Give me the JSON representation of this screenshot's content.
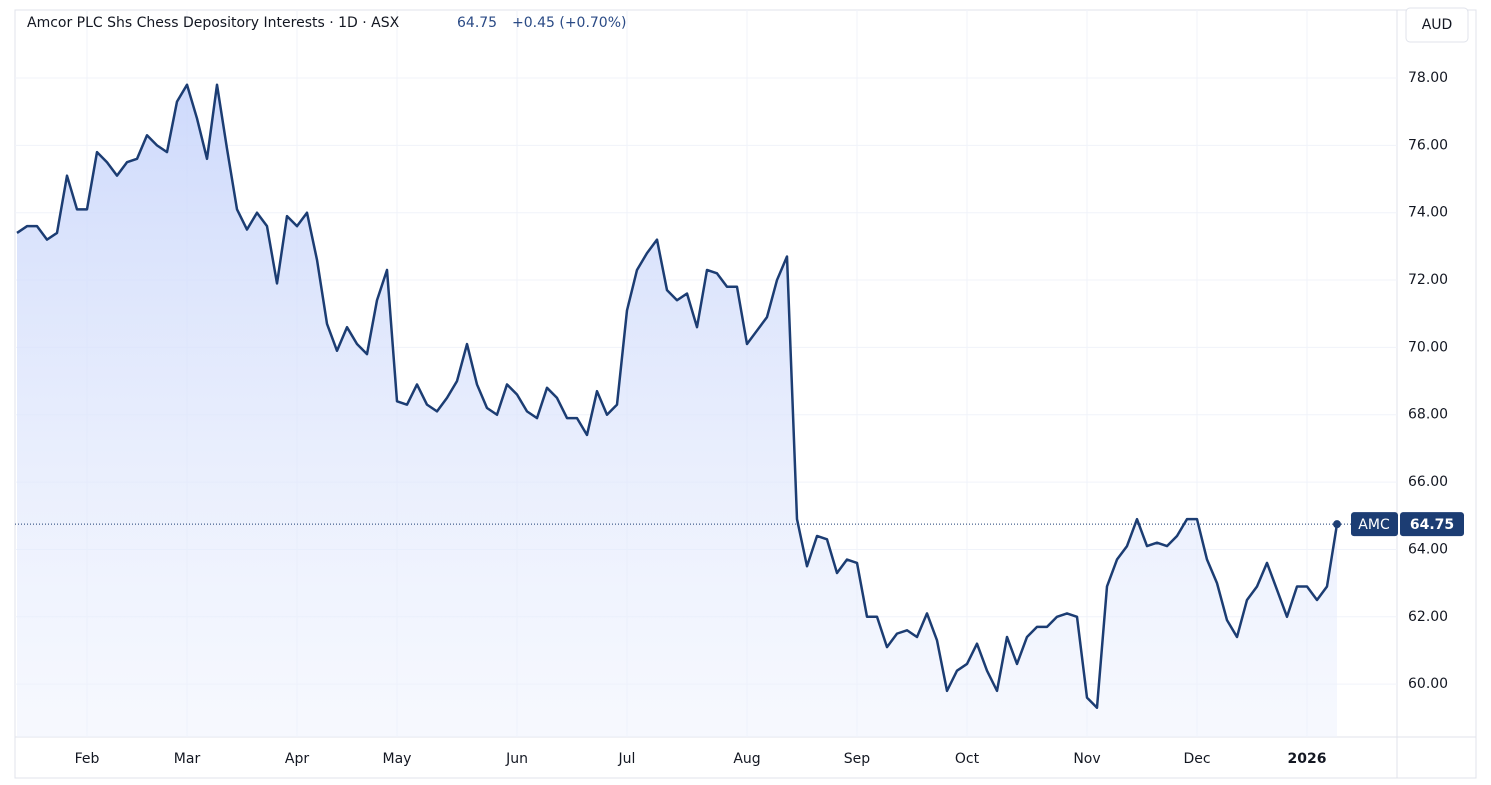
{
  "chart_data": {
    "type": "line",
    "title": "Amcor PLC Shs Chess Depository Interests · 1D · ASX",
    "change_label": "+0.45 (+0.70%)",
    "currency": "AUD",
    "categories": [
      null,
      null,
      null,
      null,
      null,
      null,
      null,
      "Feb",
      null,
      null,
      null,
      null,
      null,
      null,
      null,
      null,
      null,
      "Mar",
      null,
      null,
      null,
      null,
      null,
      null,
      null,
      null,
      null,
      null,
      "Apr",
      null,
      null,
      null,
      null,
      null,
      null,
      null,
      null,
      null,
      "May",
      null,
      null,
      null,
      null,
      null,
      null,
      null,
      null,
      null,
      null,
      null,
      "Jun",
      null,
      null,
      null,
      null,
      null,
      null,
      null,
      null,
      null,
      null,
      "Jul",
      null,
      null,
      null,
      null,
      null,
      null,
      null,
      null,
      null,
      null,
      null,
      "Aug",
      null,
      null,
      null,
      null,
      null,
      null,
      null,
      null,
      null,
      null,
      "Sep",
      null,
      null,
      null,
      null,
      null,
      null,
      null,
      null,
      null,
      null,
      "Oct",
      null,
      null,
      null,
      null,
      null,
      null,
      null,
      null,
      null,
      null,
      null,
      "Nov",
      null,
      null,
      null,
      null,
      null,
      null,
      null,
      null,
      null,
      null,
      "Dec",
      null,
      null,
      null,
      null,
      null,
      null,
      null,
      null,
      null,
      null,
      "2026",
      null,
      null,
      null
    ],
    "series": [
      {
        "name": "AMC",
        "color": "#1c3d73",
        "values": [
          73.4,
          73.6,
          73.6,
          73.2,
          73.4,
          75.1,
          74.1,
          74.1,
          75.8,
          75.5,
          75.1,
          75.5,
          75.6,
          76.3,
          76.0,
          75.8,
          77.3,
          77.8,
          76.8,
          75.6,
          77.8,
          75.9,
          74.1,
          73.5,
          74.0,
          73.6,
          71.9,
          73.9,
          73.6,
          74.0,
          72.6,
          70.7,
          69.9,
          70.6,
          70.1,
          69.8,
          71.4,
          72.3,
          68.4,
          68.3,
          68.9,
          68.3,
          68.1,
          68.5,
          69.0,
          70.1,
          68.9,
          68.2,
          68.0,
          68.9,
          68.6,
          68.1,
          67.9,
          68.8,
          68.5,
          67.9,
          67.9,
          67.4,
          68.7,
          68.0,
          68.3,
          71.1,
          72.3,
          72.8,
          73.2,
          71.7,
          71.4,
          71.6,
          70.6,
          72.3,
          72.2,
          71.8,
          71.8,
          70.1,
          70.5,
          70.9,
          72.0,
          72.7,
          64.9,
          63.5,
          64.4,
          64.3,
          63.3,
          63.7,
          63.6,
          62.0,
          62.0,
          61.1,
          61.5,
          61.6,
          61.4,
          62.1,
          61.3,
          59.8,
          60.4,
          60.6,
          61.2,
          60.4,
          59.8,
          61.4,
          60.6,
          61.4,
          61.7,
          61.7,
          62.0,
          62.1,
          62.0,
          59.6,
          59.3,
          62.9,
          63.7,
          64.1,
          64.9,
          64.1,
          64.2,
          64.1,
          64.4,
          64.9,
          64.9,
          63.7,
          63.0,
          61.9,
          61.4,
          62.5,
          62.9,
          63.6,
          62.8,
          62.0,
          62.9,
          62.9,
          62.5,
          62.9,
          64.75
        ]
      }
    ],
    "ylim": [
      58.43,
      80.02
    ],
    "yticks": [
      {
        "value": 60,
        "label": "60.00"
      },
      {
        "value": 62,
        "label": "62.00"
      },
      {
        "value": 64,
        "label": "64.00"
      },
      {
        "value": 66,
        "label": "66.00"
      },
      {
        "value": 68,
        "label": "68.00"
      },
      {
        "value": 70,
        "label": "70.00"
      },
      {
        "value": 72,
        "label": "72.00"
      },
      {
        "value": 74,
        "label": "74.00"
      },
      {
        "value": 76,
        "label": "76.00"
      },
      {
        "value": 78,
        "label": "78.00"
      }
    ],
    "grid": true
  }
}
